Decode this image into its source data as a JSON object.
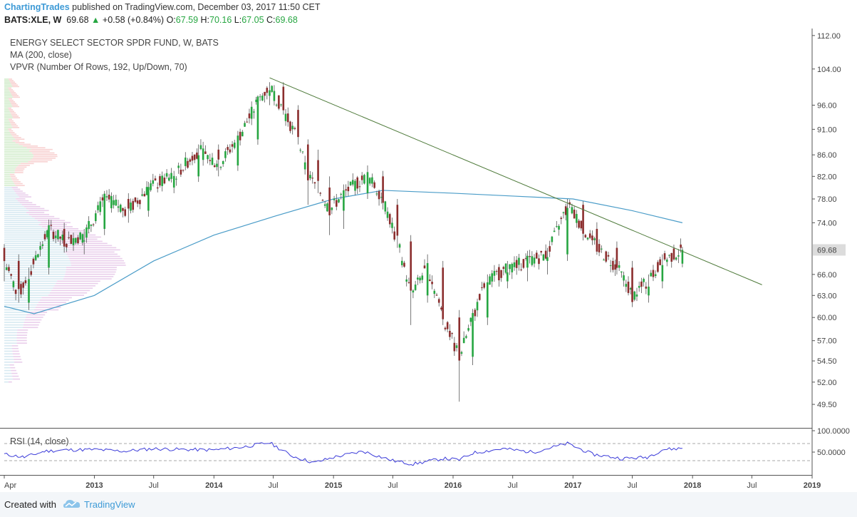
{
  "header": {
    "author": "ChartingTrades",
    "published": " published on TradingView.com, December 03, 2017 11:50 CET",
    "symbol": "BATS:XLE, W",
    "last": "69.68",
    "change_arrow": "▲",
    "change": "+0.58 (+0.84%)",
    "o_label": "O:",
    "o_value": "67.59",
    "h_label": "H:",
    "h_value": "70.16",
    "l_label": "L:",
    "l_value": "67.05",
    "c_label": "C:",
    "c_value": "69.68"
  },
  "legend": {
    "title": "ENERGY SELECT SECTOR SPDR FUND, W, BATS",
    "ma": "MA (200, close)",
    "vpvr": "VPVR (Number Of Rows, 192, Up/Down, 70)",
    "rsi": "RSI (14, close)"
  },
  "footer": {
    "created_with": "Created with",
    "brand": "TradingView"
  },
  "colors": {
    "up": "#26a641",
    "down": "#8b2d2d",
    "ma": "#4a9cc8",
    "trendline": "#4e7a3a",
    "rsi": "#3b3bd9",
    "price_tag": "#dcdcdc"
  },
  "chart_data": [
    {
      "type": "candlestick",
      "title": "ENERGY SELECT SECTOR SPDR FUND, W, BATS",
      "y_ticks": [
        "112.00",
        "104.00",
        "96.00",
        "91.00",
        "86.00",
        "82.00",
        "78.00",
        "74.00",
        "66.00",
        "63.00",
        "60.00",
        "57.00",
        "54.50",
        "52.00",
        "49.50"
      ],
      "y_scale": "log",
      "ylim": [
        48.5,
        112.5
      ],
      "last_price_label": "69.68",
      "x_ticks": [
        "Apr",
        "2013",
        "Jul",
        "2014",
        "Jul",
        "2015",
        "Jul",
        "2016",
        "Jul",
        "2017",
        "Jul",
        "2018",
        "Jul",
        "2019"
      ],
      "xlim": [
        "2012-04-01",
        "2019-01-01"
      ],
      "ohlc_weekly_approx": [
        [
          "2012-04-01",
          70,
          70,
          65,
          68
        ],
        [
          "2012-05-15",
          68,
          69,
          62,
          63
        ],
        [
          "2012-06-15",
          62,
          67,
          61,
          66
        ],
        [
          "2012-08-15",
          67,
          74,
          66,
          73
        ],
        [
          "2012-10-01",
          73,
          74,
          70,
          71
        ],
        [
          "2012-12-01",
          71,
          73,
          69,
          72
        ],
        [
          "2013-02-01",
          73,
          79,
          72,
          78
        ],
        [
          "2013-04-15",
          78,
          79,
          74,
          76
        ],
        [
          "2013-06-15",
          76,
          81,
          75,
          80
        ],
        [
          "2013-09-01",
          80,
          83,
          79,
          82
        ],
        [
          "2013-11-15",
          82,
          88,
          81,
          87
        ],
        [
          "2014-01-15",
          87,
          88,
          82,
          84
        ],
        [
          "2014-03-15",
          84,
          90,
          83,
          89
        ],
        [
          "2014-05-15",
          89,
          98,
          88,
          97
        ],
        [
          "2014-06-20",
          98,
          101,
          96,
          100
        ],
        [
          "2014-08-01",
          100,
          101,
          94,
          95
        ],
        [
          "2014-09-15",
          95,
          96,
          88,
          89
        ],
        [
          "2014-10-15",
          88,
          89,
          77,
          82
        ],
        [
          "2014-11-15",
          85,
          87,
          79,
          80
        ],
        [
          "2014-12-20",
          80,
          82,
          72,
          76
        ],
        [
          "2015-02-01",
          76,
          80,
          73,
          79
        ],
        [
          "2015-04-15",
          79,
          84,
          78,
          82
        ],
        [
          "2015-06-01",
          82,
          83,
          77,
          78
        ],
        [
          "2015-07-15",
          77,
          78,
          70,
          71
        ],
        [
          "2015-08-25",
          71,
          72,
          59,
          63
        ],
        [
          "2015-10-15",
          63,
          69,
          62,
          67
        ],
        [
          "2015-12-01",
          67,
          68,
          59,
          60
        ],
        [
          "2016-01-20",
          60,
          61,
          49.8,
          55
        ],
        [
          "2016-03-01",
          55,
          61,
          54,
          60
        ],
        [
          "2016-04-15",
          60,
          66,
          59,
          65
        ],
        [
          "2016-06-15",
          65,
          68,
          64,
          67
        ],
        [
          "2016-08-15",
          67,
          69,
          65,
          68
        ],
        [
          "2016-10-15",
          68,
          70,
          66,
          69
        ],
        [
          "2016-12-15",
          69,
          78,
          68,
          77
        ],
        [
          "2017-02-01",
          77,
          77,
          72,
          73
        ],
        [
          "2017-03-15",
          73,
          74,
          69,
          70
        ],
        [
          "2017-05-15",
          70,
          71,
          66,
          67
        ],
        [
          "2017-07-01",
          67,
          68,
          62,
          63
        ],
        [
          "2017-08-20",
          63,
          66,
          62,
          65
        ],
        [
          "2017-10-01",
          65,
          69,
          64,
          68
        ],
        [
          "2017-12-01",
          67.59,
          70.16,
          67.05,
          69.68
        ]
      ],
      "ma200": [
        [
          "2012-04-01",
          61.5
        ],
        [
          "2012-07-01",
          60.5
        ],
        [
          "2013-01-01",
          63
        ],
        [
          "2013-07-01",
          68
        ],
        [
          "2014-01-01",
          72
        ],
        [
          "2014-07-01",
          75
        ],
        [
          "2015-01-01",
          78
        ],
        [
          "2015-06-01",
          79.5
        ],
        [
          "2016-01-01",
          79
        ],
        [
          "2016-07-01",
          78.5
        ],
        [
          "2017-01-01",
          78
        ],
        [
          "2017-07-01",
          76
        ],
        [
          "2017-12-01",
          74
        ]
      ],
      "trendline": [
        [
          "2014-06-20",
          102
        ],
        [
          "2018-08-01",
          64.5
        ]
      ]
    },
    {
      "type": "line",
      "title": "RSI (14, close)",
      "y_ticks": [
        "100.0000",
        "50.0000"
      ],
      "ylim": [
        0,
        100
      ],
      "reference_lines": [
        70,
        30
      ],
      "series": [
        {
          "values": [
            [
              "2012-04-01",
              45
            ],
            [
              "2012-06-01",
              38
            ],
            [
              "2012-08-01",
              52
            ],
            [
              "2012-10-01",
              55
            ],
            [
              "2013-01-01",
              56
            ],
            [
              "2013-04-01",
              52
            ],
            [
              "2013-07-01",
              58
            ],
            [
              "2013-10-01",
              56
            ],
            [
              "2014-01-01",
              55
            ],
            [
              "2014-04-01",
              62
            ],
            [
              "2014-06-20",
              72
            ],
            [
              "2014-09-01",
              40
            ],
            [
              "2014-11-01",
              25
            ],
            [
              "2015-01-01",
              38
            ],
            [
              "2015-04-01",
              52
            ],
            [
              "2015-07-01",
              30
            ],
            [
              "2015-09-01",
              22
            ],
            [
              "2015-12-01",
              35
            ],
            [
              "2016-01-20",
              32
            ],
            [
              "2016-03-01",
              48
            ],
            [
              "2016-06-01",
              58
            ],
            [
              "2016-09-01",
              50
            ],
            [
              "2016-12-15",
              70
            ],
            [
              "2017-03-01",
              45
            ],
            [
              "2017-06-01",
              35
            ],
            [
              "2017-08-15",
              38
            ],
            [
              "2017-10-01",
              56
            ],
            [
              "2017-12-01",
              59
            ]
          ]
        }
      ]
    }
  ]
}
